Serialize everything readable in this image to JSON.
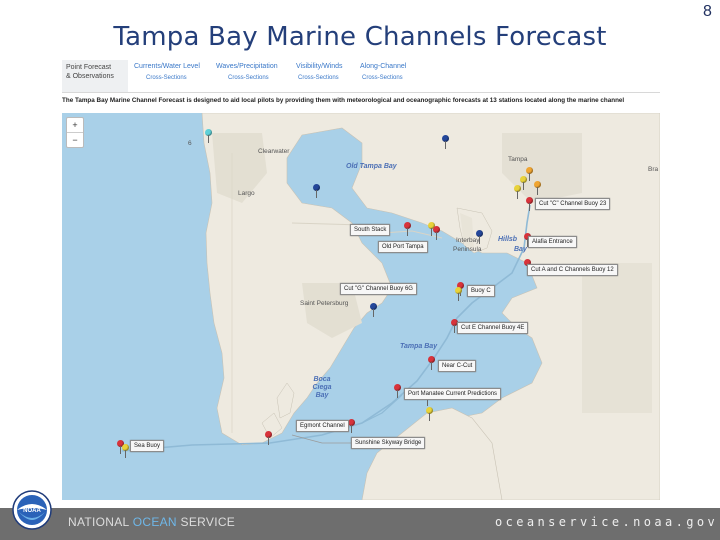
{
  "slide": {
    "title": "Tampa Bay Marine Channels Forecast",
    "page_number": "8"
  },
  "tabs": [
    {
      "label_1": "Point Forecast",
      "label_2": "& Observations",
      "sub": "",
      "active": true
    },
    {
      "label_1": "Currents/Water Level",
      "label_2": "",
      "sub": "Cross-Sections",
      "active": false
    },
    {
      "label_1": "Waves/Precipitation",
      "label_2": "",
      "sub": "Cross-Sections",
      "active": false
    },
    {
      "label_1": "Visibility/Winds",
      "label_2": "",
      "sub": "Cross-Sections",
      "active": false
    },
    {
      "label_1": "Along-Channel",
      "label_2": "",
      "sub": "Cross-Sections",
      "active": false
    }
  ],
  "description": "The Tampa Bay Marine Channel Forecast is designed to aid local pilots by providing them with meteorological and oceanographic forecasts at 13 stations located along the marine channel",
  "map": {
    "zoom_in": "+",
    "zoom_out": "−",
    "places": {
      "clearwater": "Clearwater",
      "largo": "Largo",
      "old_tampa_bay": "Old Tampa Bay",
      "tampa": "Tampa",
      "interbay": "Interbay",
      "peninsula": "Peninsula",
      "hillsborough": "Hillsb",
      "bay": "Bay",
      "st_petersburg": "Saint Petersburg",
      "tampa_bay": "Tampa Bay",
      "boca_ciega": "Boca Ciega Bay",
      "bra": "Bra",
      "six": "6"
    },
    "stations": [
      "Cut \"C\" Channel Buoy 23",
      "South Stack",
      "Alafia Entrance",
      "Old Port Tampa",
      "Cut A and C Channels Buoy 12",
      "Cut \"G\" Channel Buoy 6G",
      "Buoy C",
      "Cut E Channel Buoy 4E",
      "Near C-Cut",
      "Port Manatee Current Predictions",
      "Egmont Channel",
      "Sea Buoy",
      "Sunshine Skyway Bridge"
    ],
    "pin_colors": {
      "red": "#d8333b",
      "yellow": "#e8d23a",
      "blue": "#24479a",
      "orange": "#f0a531",
      "cyan": "#5fd1d8"
    }
  },
  "footer": {
    "left_1": "NATIONAL ",
    "left_ocean": "OCEAN",
    "left_2": " SERVICE",
    "right": "oceanservice.noaa.gov"
  },
  "logo": {
    "text": "NOAA"
  }
}
